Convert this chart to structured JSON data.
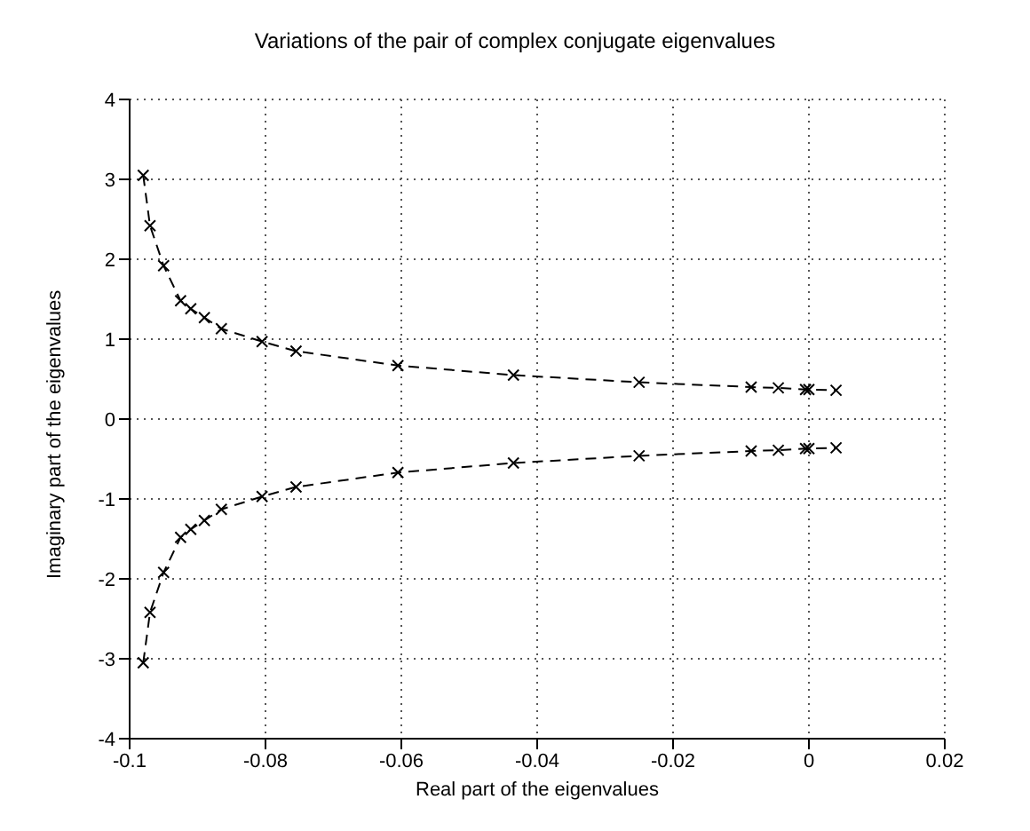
{
  "chart_data": {
    "type": "line",
    "title": "Variations of the pair of complex conjugate eigenvalues",
    "xlabel": "Real part of the eigenvalues",
    "ylabel": "Imaginary part of the eigenvalues",
    "x": [
      -0.098,
      -0.097,
      -0.095,
      -0.0925,
      -0.091,
      -0.089,
      -0.0865,
      -0.0805,
      -0.0755,
      -0.0605,
      -0.0435,
      -0.025,
      -0.0085,
      -0.0045,
      -0.0005,
      0,
      0.004
    ],
    "series": [
      {
        "color": "#000000",
        "values": [
          3.05,
          2.42,
          1.92,
          1.48,
          1.38,
          1.27,
          1.13,
          0.97,
          0.85,
          0.67,
          0.55,
          0.46,
          0.4,
          0.39,
          0.37,
          0.37,
          0.36
        ]
      },
      {
        "color": "#000000",
        "values": [
          -3.05,
          -2.42,
          -1.92,
          -1.48,
          -1.38,
          -1.27,
          -1.13,
          -0.97,
          -0.85,
          -0.67,
          -0.55,
          -0.46,
          -0.4,
          -0.39,
          -0.37,
          -0.37,
          -0.36
        ]
      }
    ],
    "xlim": [
      -0.1,
      0.02
    ],
    "xticks": [
      -0.1,
      -0.08,
      -0.06,
      -0.04,
      -0.02,
      0,
      0.02
    ],
    "ylim": [
      -4,
      4
    ],
    "yticks": [
      -4,
      -3,
      -2,
      -1,
      0,
      1,
      2,
      3,
      4
    ],
    "grid": true,
    "legend": false,
    "marker": "cross",
    "line_style": "dashed"
  }
}
